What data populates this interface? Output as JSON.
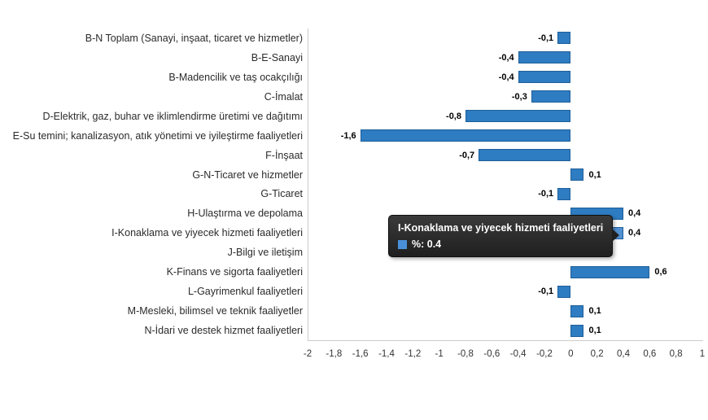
{
  "chart_data": {
    "type": "bar",
    "orientation": "horizontal",
    "title": "",
    "categories": [
      "B-N Toplam (Sanayi, inşaat, ticaret ve hizmetler)",
      "B-E-Sanayi",
      "B-Madencilik ve taş ocakçılığı",
      "C-İmalat",
      "D-Elektrik, gaz, buhar ve iklimlendirme üretimi ve dağıtımı",
      "E-Su temini; kanalizasyon, atık yönetimi ve iyileştirme faaliyetleri",
      "F-İnşaat",
      "G-N-Ticaret ve hizmetler",
      "G-Ticaret",
      "H-Ulaştırma ve depolama",
      "I-Konaklama ve yiyecek hizmeti faaliyetleri",
      "J-Bilgi ve iletişim",
      "K-Finans ve sigorta faaliyetleri",
      "L-Gayrimenkul faaliyetleri",
      "M-Mesleki, bilimsel ve teknik faaliyetler",
      "N-İdari ve destek hizmet faaliyetleri"
    ],
    "series": [
      {
        "name": "%",
        "values": [
          -0.1,
          -0.4,
          -0.4,
          -0.3,
          -0.8,
          -1.6,
          -0.7,
          0.1,
          -0.1,
          0.4,
          0.4,
          0.0,
          0.6,
          -0.1,
          0.1,
          0.1
        ],
        "value_labels": [
          "-0,1",
          "-0,4",
          "-0,4",
          "-0,3",
          "-0,8",
          "-1,6",
          "-0,7",
          "0,1",
          "-0,1",
          "0,4",
          "0,4",
          "0,0",
          "0,6",
          "-0,1",
          "0,1",
          "0,1"
        ]
      }
    ],
    "xlim": [
      -2,
      1
    ],
    "x_ticks": [
      "-2",
      "-1,8",
      "-1,6",
      "-1,4",
      "-1,2",
      "-1",
      "-0,8",
      "-0,6",
      "-0,4",
      "-0,2",
      "0",
      "0,2",
      "0,4",
      "0,6",
      "0,8",
      "1"
    ],
    "grid": false,
    "legend_position": "none",
    "bar_color": "#2E7CC1",
    "bar_border_color": "#1F5F9A",
    "bar_hover_color": "#5290D2",
    "highlighted_index": 10,
    "tooltip": {
      "title": "I-Konaklama ve yiyecek hizmeti faaliyetleri",
      "series_marker_color": "#4A90D9",
      "text": "%: 0.4"
    }
  }
}
